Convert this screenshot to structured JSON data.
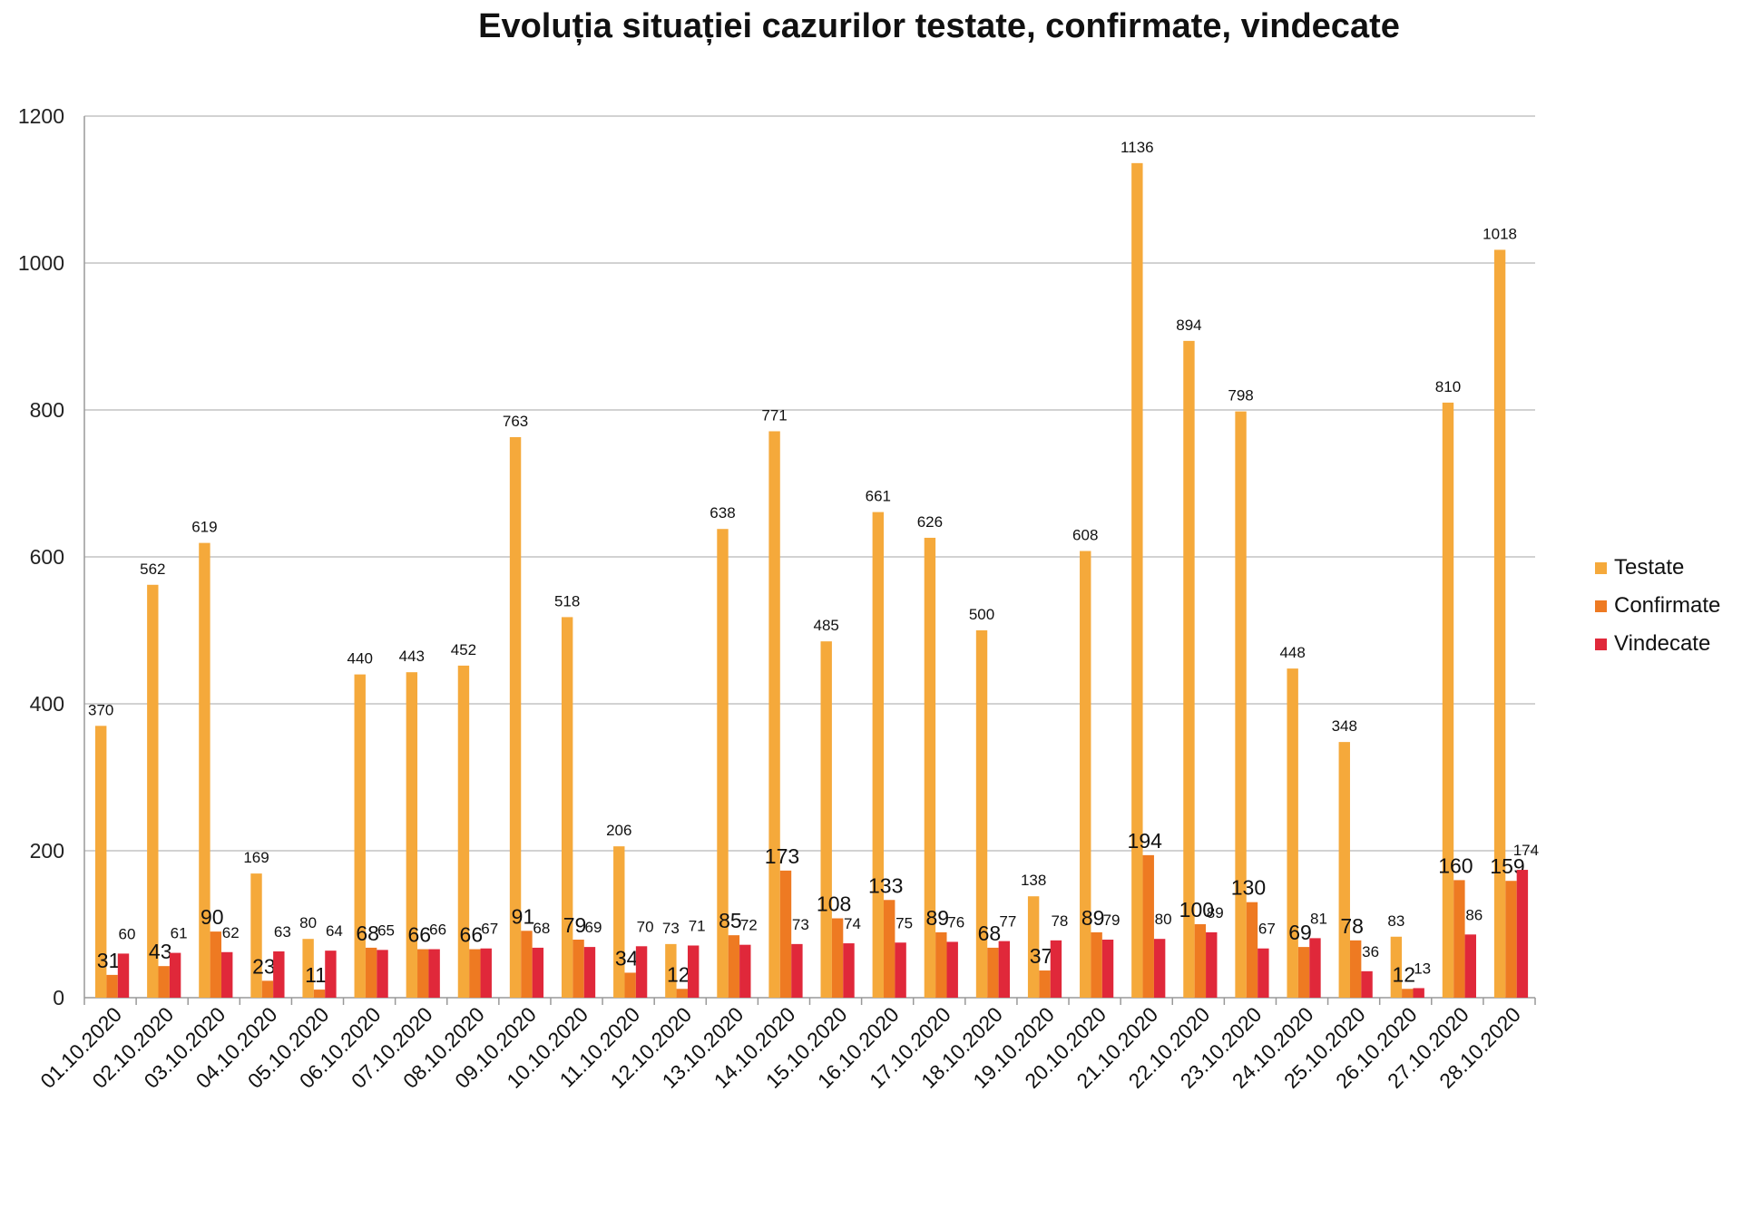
{
  "chart_data": {
    "type": "bar",
    "title": "Evoluția situației cazurilor testate, confirmate, vindecate",
    "xlabel": "",
    "ylabel": "",
    "ylim": [
      0,
      1200
    ],
    "yticks": [
      0,
      200,
      400,
      600,
      800,
      1000,
      1200
    ],
    "grid": true,
    "legend_position": "right",
    "categories": [
      "01.10.2020",
      "02.10.2020",
      "03.10.2020",
      "04.10.2020",
      "05.10.2020",
      "06.10.2020",
      "07.10.2020",
      "08.10.2020",
      "09.10.2020",
      "10.10.2020",
      "11.10.2020",
      "12.10.2020",
      "13.10.2020",
      "14.10.2020",
      "15.10.2020",
      "16.10.2020",
      "17.10.2020",
      "18.10.2020",
      "19.10.2020",
      "20.10.2020",
      "21.10.2020",
      "22.10.2020",
      "23.10.2020",
      "24.10.2020",
      "25.10.2020",
      "26.10.2020",
      "27.10.2020",
      "28.10.2020"
    ],
    "series": [
      {
        "name": "Testate",
        "color": "#F5A93B",
        "values": [
          370,
          562,
          619,
          169,
          80,
          440,
          443,
          452,
          763,
          518,
          206,
          73,
          638,
          771,
          485,
          661,
          626,
          500,
          138,
          608,
          1136,
          894,
          798,
          448,
          348,
          83,
          810,
          1018
        ]
      },
      {
        "name": "Confirmate",
        "color": "#EE7A22",
        "values": [
          31,
          43,
          90,
          23,
          11,
          68,
          66,
          66,
          91,
          79,
          34,
          12,
          85,
          173,
          108,
          133,
          89,
          68,
          37,
          89,
          194,
          100,
          130,
          69,
          78,
          12,
          160,
          159
        ]
      },
      {
        "name": "Vindecate",
        "color": "#E0283A",
        "values": [
          60,
          61,
          62,
          63,
          64,
          65,
          66,
          67,
          68,
          69,
          70,
          71,
          72,
          73,
          74,
          75,
          76,
          77,
          78,
          79,
          80,
          89,
          67,
          81,
          36,
          13,
          86,
          174
        ]
      }
    ]
  }
}
